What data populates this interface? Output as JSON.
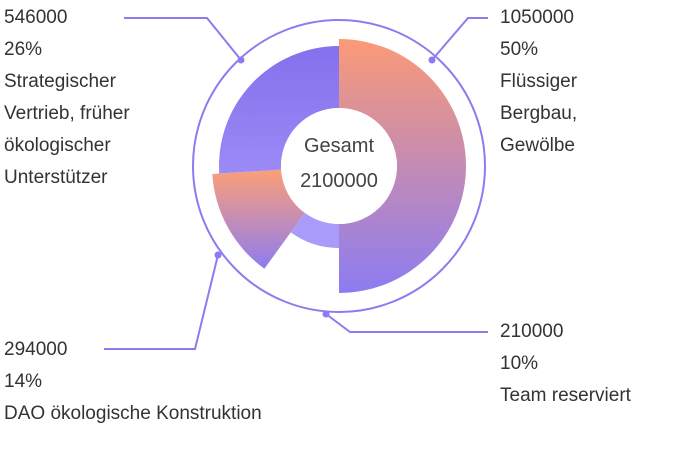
{
  "chart_data": {
    "type": "pie",
    "style": "donut",
    "center_label": "Gesamt",
    "center_value": "2100000",
    "total": 2100000,
    "colors": {
      "ring": "#8b7cf0",
      "gradient_top": "#fb9a76",
      "gradient_bottom": "#8f7cf0",
      "dao": "#f9a07a",
      "team": "#a89bfa",
      "strategic": "#8a74ee",
      "leader": "#8b7cf0"
    },
    "slices": [
      {
        "value": 1050000,
        "percent": "50%",
        "lines": [
          "Flüssiger",
          "Bergbau,",
          "Gewölbe"
        ]
      },
      {
        "value": 210000,
        "percent": "10%",
        "lines": [
          "Team reserviert"
        ]
      },
      {
        "value": 294000,
        "percent": "14%",
        "lines": [
          "DAO ökologische Konstruktion"
        ]
      },
      {
        "value": 546000,
        "percent": "26%",
        "lines": [
          "Strategischer",
          "Vertrieb, früher",
          "ökologischer",
          "Unterstützer"
        ]
      }
    ]
  }
}
